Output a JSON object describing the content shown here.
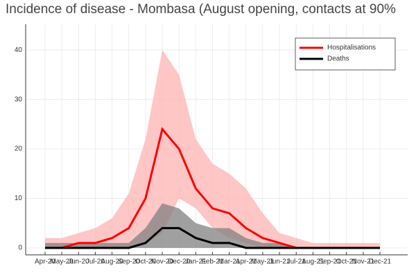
{
  "chart_data": {
    "type": "line",
    "title": "Incidence of disease - Mombasa (August opening, contacts at 90%",
    "categories": [
      "Apr-20",
      "May-20",
      "Jun-20",
      "Jul-20",
      "Aug-20",
      "Sep-20",
      "Oct-20",
      "Nov-20",
      "Dec-20",
      "Jan-21",
      "Feb-21",
      "Mar-21",
      "Apr-21",
      "May-21",
      "Jun-21",
      "Jul-21",
      "Aug-21",
      "Sep-21",
      "Oct-21",
      "Nov-21",
      "Dec-21"
    ],
    "series": [
      {
        "name": "Hospitalisations",
        "color": "#ff0000",
        "band_color": "#ffb3b3",
        "values": [
          0,
          0,
          1,
          1,
          2,
          4,
          10,
          24,
          20,
          12,
          8,
          7,
          4,
          2,
          1,
          0,
          0,
          0,
          0,
          0,
          0
        ],
        "lower": [
          0,
          0,
          0,
          0,
          0,
          0,
          1,
          3,
          10,
          8,
          4,
          2,
          1,
          0,
          0,
          0,
          0,
          0,
          0,
          0,
          0
        ],
        "upper": [
          2,
          2,
          3,
          4,
          6,
          11,
          22,
          40,
          35,
          22,
          17,
          15,
          12,
          7,
          3,
          2,
          1,
          1,
          1,
          1,
          1
        ]
      },
      {
        "name": "Deaths",
        "color": "#000000",
        "band_color": "#808080",
        "values": [
          0,
          0,
          0,
          0,
          0,
          0,
          1,
          4,
          4,
          2,
          1,
          1,
          0,
          0,
          0,
          0,
          0,
          0,
          0,
          0,
          0
        ],
        "lower": [
          0,
          0,
          0,
          0,
          0,
          0,
          0,
          0,
          0,
          0,
          0,
          0,
          0,
          0,
          0,
          0,
          0,
          0,
          0,
          0,
          0
        ],
        "upper": [
          1,
          1,
          1,
          1,
          1,
          1,
          4,
          9,
          8,
          5,
          4,
          4,
          2,
          1,
          1,
          0,
          0,
          0,
          0,
          0,
          0
        ]
      }
    ],
    "ylim": [
      -1.4,
      45.2
    ],
    "yticks": [
      0,
      10,
      20,
      30,
      40
    ],
    "grid": true,
    "legend": "top-right"
  }
}
